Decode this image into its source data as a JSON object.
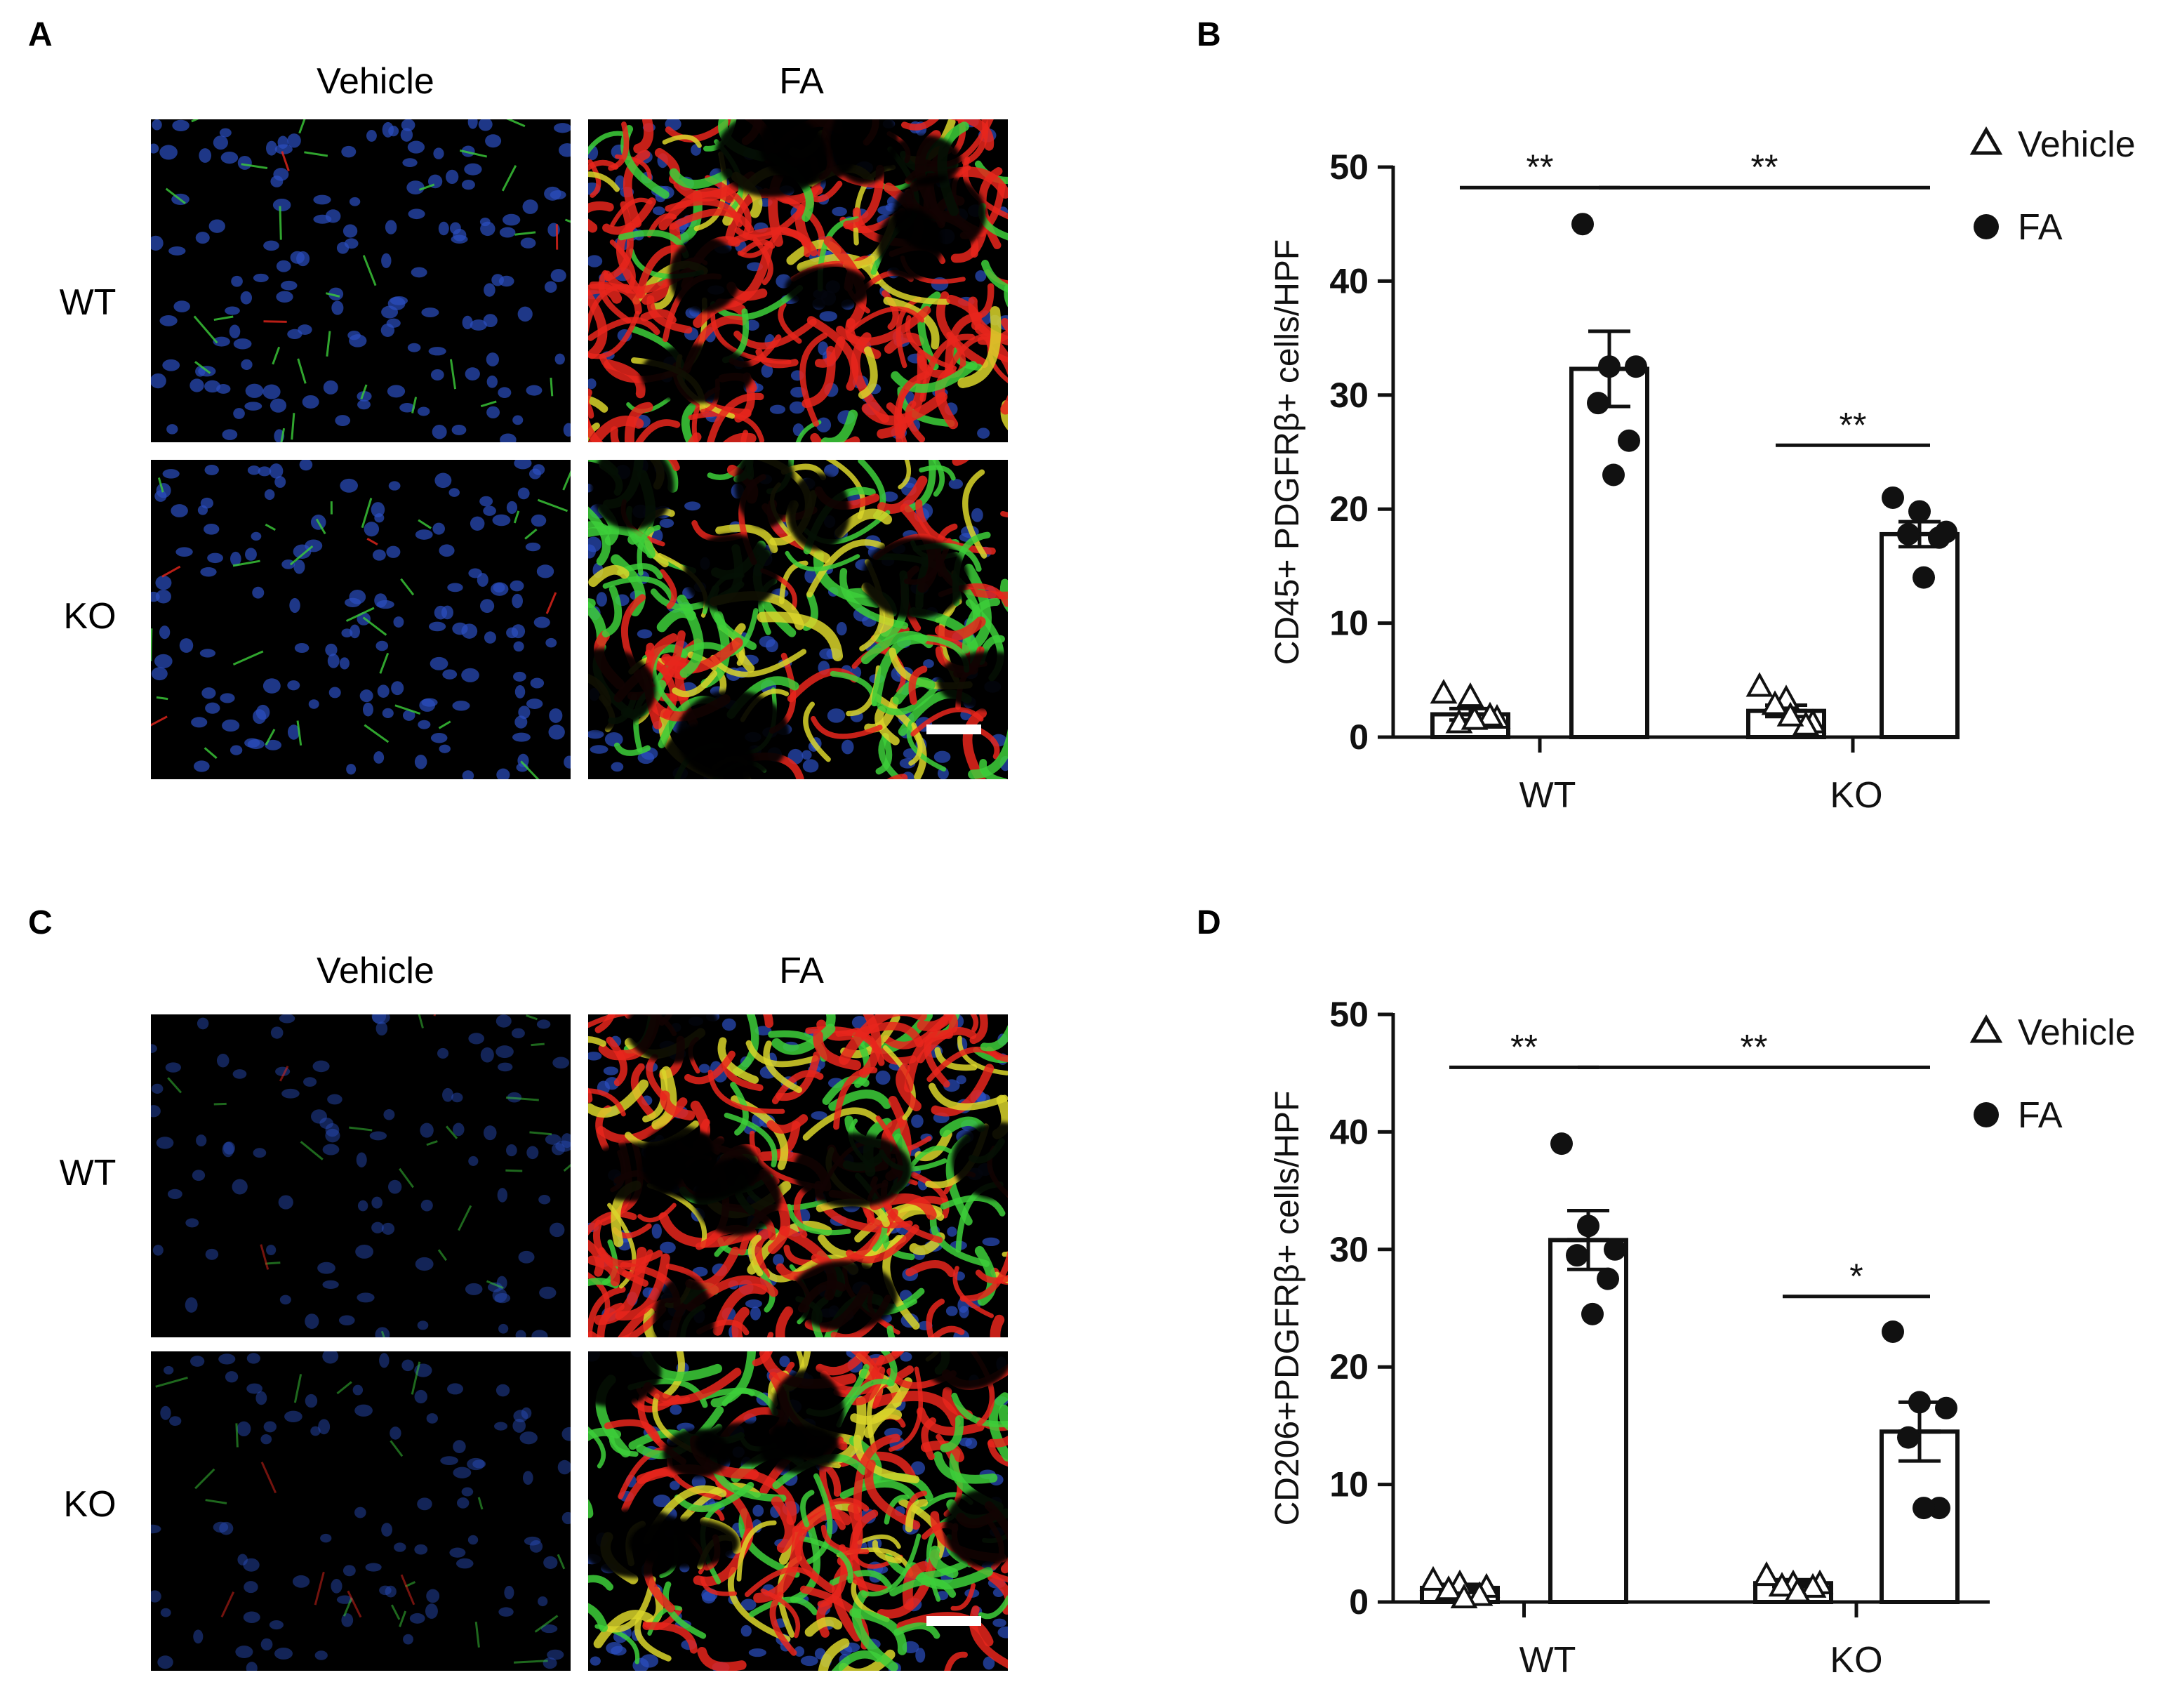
{
  "panels": {
    "A": {
      "letter": "A",
      "col_labels": [
        "Vehicle",
        "FA"
      ],
      "row_labels": [
        "WT",
        "KO"
      ]
    },
    "C": {
      "letter": "C",
      "col_labels": [
        "Vehicle",
        "FA"
      ],
      "row_labels": [
        "WT",
        "KO"
      ]
    },
    "B": {
      "letter": "B"
    },
    "D": {
      "letter": "D"
    }
  },
  "colors": {
    "background": "#000000",
    "nuclei": "#2b4fc0",
    "green_stain": "#3dcf3a",
    "red_stain": "#e8261c",
    "yellow_overlap": "#d9d52a",
    "scale_bar": "#ffffff",
    "ink": "#111111"
  },
  "chart_data": [
    {
      "panel": "B",
      "type": "bar",
      "ylabel": "CD45+ PDGFRβ+ cells/HPF",
      "xlabel": "",
      "categories": [
        "WT",
        "KO"
      ],
      "ylim": [
        0,
        50
      ],
      "yticks": [
        0,
        10,
        20,
        30,
        40,
        50
      ],
      "legend": {
        "position": "top-right",
        "entries": [
          "Vehicle",
          "FA"
        ]
      },
      "series": [
        {
          "name": "Vehicle",
          "marker": "open-triangle",
          "means": [
            2.0,
            2.3
          ],
          "sem": [
            0.5,
            0.5
          ],
          "points": [
            [
              3.8,
              3.5,
              1.6,
              1.2,
              1.8,
              1.5
            ],
            [
              4.4,
              3.3,
              1.2,
              2.8,
              1.0,
              1.8
            ]
          ]
        },
        {
          "name": "FA",
          "marker": "filled-circle",
          "means": [
            32.3,
            17.8
          ],
          "sem": [
            3.3,
            1.1
          ],
          "points": [
            [
              45.0,
              32.5,
              32.5,
              29.3,
              26.0,
              23.0
            ],
            [
              21.0,
              19.8,
              18.0,
              17.8,
              17.5,
              14.0
            ]
          ]
        }
      ],
      "significance": [
        {
          "label": "**",
          "from": [
            0,
            "Vehicle"
          ],
          "to": [
            0,
            "FA"
          ],
          "level": 48.2
        },
        {
          "label": "**",
          "from": [
            0,
            "FA"
          ],
          "to": [
            1,
            "FA"
          ],
          "level": 48.2
        },
        {
          "label": "**",
          "from": [
            1,
            "Vehicle"
          ],
          "to": [
            1,
            "FA"
          ],
          "level": 25.6
        }
      ]
    },
    {
      "panel": "D",
      "type": "bar",
      "ylabel": "CD206+PDGFRβ+ cells/HPF",
      "xlabel": "",
      "categories": [
        "WT",
        "KO"
      ],
      "ylim": [
        0,
        50
      ],
      "yticks": [
        0,
        10,
        20,
        30,
        40,
        50
      ],
      "legend": {
        "position": "top-right",
        "entries": [
          "Vehicle",
          "FA"
        ]
      },
      "series": [
        {
          "name": "Vehicle",
          "marker": "open-triangle",
          "means": [
            1.2,
            1.6
          ],
          "sem": [
            0.3,
            0.3
          ],
          "points": [
            [
              1.8,
              1.5,
              1.2,
              1.0,
              0.5,
              0.3
            ],
            [
              2.2,
              1.5,
              1.5,
              1.3,
              1.2,
              0.8
            ]
          ]
        },
        {
          "name": "FA",
          "marker": "filled-circle",
          "means": [
            30.8,
            14.5
          ],
          "sem": [
            2.5,
            2.5
          ],
          "points": [
            [
              39.0,
              32.0,
              30.0,
              29.5,
              27.5,
              24.5
            ],
            [
              23.0,
              17.0,
              16.5,
              14.0,
              8.0,
              8.0
            ]
          ]
        }
      ],
      "significance": [
        {
          "label": "**",
          "from": [
            0,
            "Vehicle"
          ],
          "to": [
            0,
            "FA"
          ],
          "level": 45.5
        },
        {
          "label": "**",
          "from": [
            0,
            "FA"
          ],
          "to": [
            1,
            "FA"
          ],
          "level": 45.5
        },
        {
          "label": "*",
          "from": [
            1,
            "Vehicle"
          ],
          "to": [
            1,
            "FA"
          ],
          "level": 26.0
        }
      ]
    }
  ]
}
